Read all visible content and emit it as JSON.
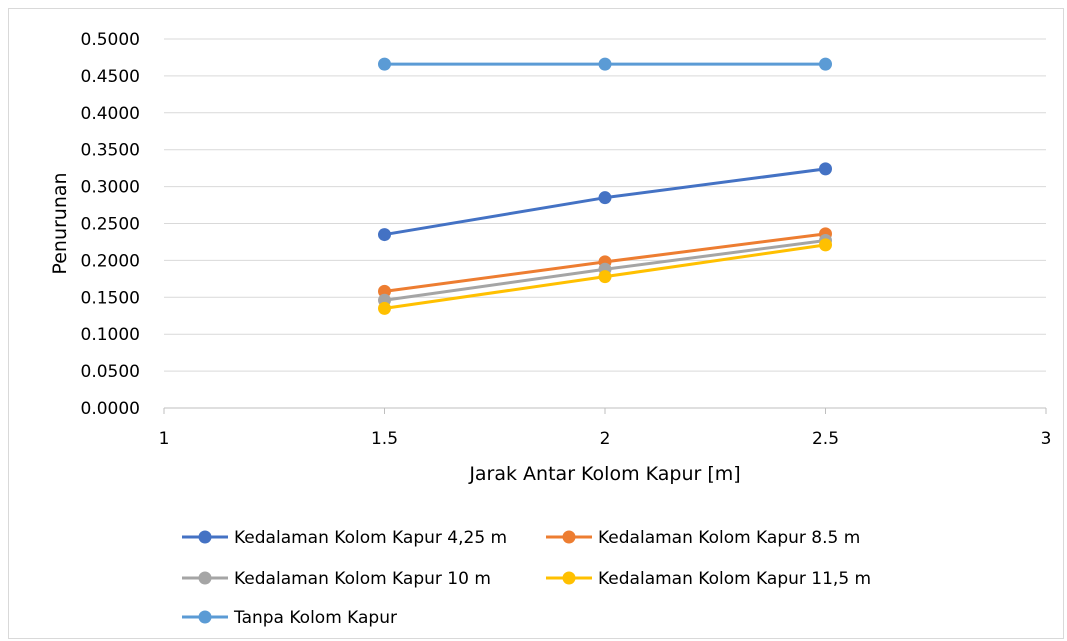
{
  "chart_data": {
    "type": "line",
    "title": "",
    "xlabel": "Jarak Antar Kolom Kapur [m]",
    "ylabel": "Penurunan",
    "xlim": [
      1,
      3
    ],
    "ylim": [
      0,
      0.5
    ],
    "x_ticks": [
      "1",
      "1.5",
      "2",
      "2.5",
      "3"
    ],
    "x_tick_values": [
      1,
      1.5,
      2,
      2.5,
      3
    ],
    "y_ticks": [
      "0.0000",
      "0.0500",
      "0.1000",
      "0.1500",
      "0.2000",
      "0.2500",
      "0.3000",
      "0.3500",
      "0.4000",
      "0.4500",
      "0.5000"
    ],
    "y_tick_values": [
      0,
      0.05,
      0.1,
      0.15,
      0.2,
      0.25,
      0.3,
      0.35,
      0.4,
      0.45,
      0.5
    ],
    "grid": "horizontal",
    "legend_position": "bottom",
    "x": [
      1.5,
      2,
      2.5
    ],
    "series": [
      {
        "name": "Kedalaman Kolom Kapur 4,25 m",
        "color": "#4472C4",
        "values": [
          0.235,
          0.285,
          0.324
        ]
      },
      {
        "name": "Kedalaman Kolom Kapur 8.5 m",
        "color": "#ED7D31",
        "values": [
          0.158,
          0.198,
          0.236
        ]
      },
      {
        "name": "Kedalaman Kolom Kapur 10 m",
        "color": "#A5A5A5",
        "values": [
          0.146,
          0.188,
          0.227
        ]
      },
      {
        "name": "Kedalaman Kolom Kapur 11,5 m",
        "color": "#FFC000",
        "values": [
          0.135,
          0.178,
          0.221
        ]
      },
      {
        "name": "Tanpa Kolom Kapur",
        "color": "#5B9BD5",
        "values": [
          0.466,
          0.466,
          0.466
        ]
      }
    ]
  }
}
